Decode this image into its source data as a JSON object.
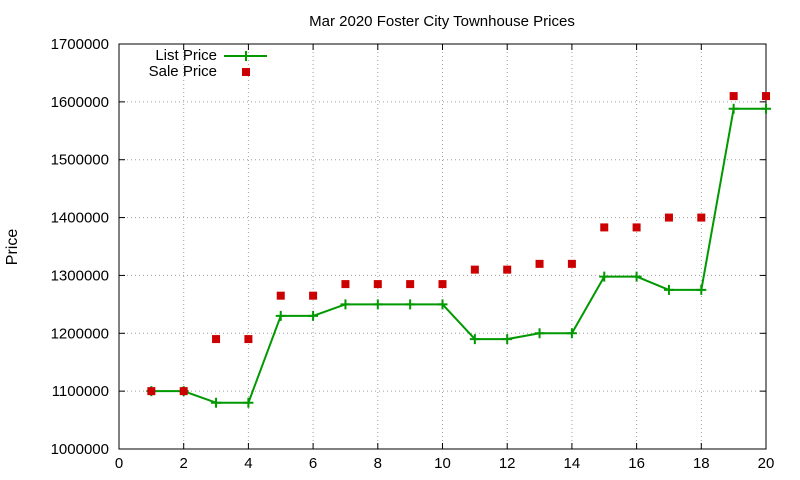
{
  "chart_data": {
    "type": "line",
    "title": "Mar 2020 Foster City Townhouse Prices",
    "xlabel": "",
    "ylabel": "Price",
    "xlim": [
      0,
      20
    ],
    "ylim": [
      1000000,
      1700000
    ],
    "xticks": [
      0,
      2,
      4,
      6,
      8,
      10,
      12,
      14,
      16,
      18,
      20
    ],
    "yticks": [
      1000000,
      1100000,
      1200000,
      1300000,
      1400000,
      1500000,
      1600000,
      1700000
    ],
    "grid": true,
    "legend_position": "top-left",
    "x": [
      1,
      2,
      3,
      4,
      5,
      6,
      7,
      8,
      9,
      10,
      11,
      12,
      13,
      14,
      15,
      16,
      17,
      18,
      19,
      20
    ],
    "series": [
      {
        "name": "List Price",
        "style": "line-with-plus-markers",
        "color": "#009900",
        "values": [
          1100000,
          1100000,
          1080000,
          1080000,
          1230000,
          1230000,
          1250000,
          1250000,
          1250000,
          1250000,
          1190000,
          1190000,
          1200000,
          1200000,
          1298000,
          1298000,
          1275000,
          1275000,
          1588000,
          1588000
        ]
      },
      {
        "name": "Sale Price",
        "style": "square-markers",
        "color": "#cc0000",
        "values": [
          1100000,
          1100000,
          1190000,
          1190000,
          1265000,
          1265000,
          1285000,
          1285000,
          1285000,
          1285000,
          1310000,
          1310000,
          1320000,
          1320000,
          1383000,
          1383000,
          1400000,
          1400000,
          1610000,
          1610000
        ]
      }
    ]
  }
}
